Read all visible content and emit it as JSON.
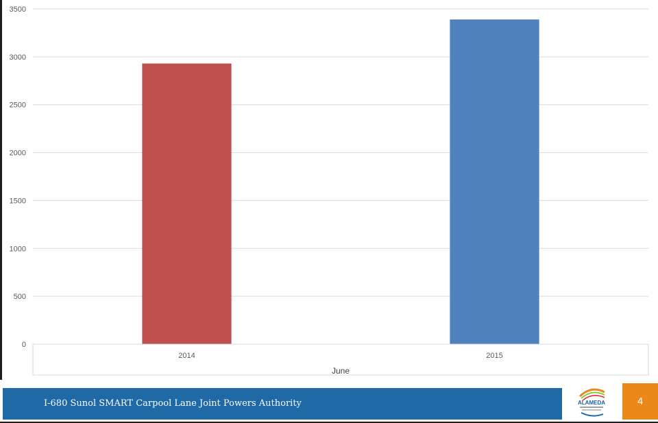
{
  "chart_data": {
    "type": "bar",
    "categories": [
      "2014",
      "2015"
    ],
    "values": [
      2930,
      3390
    ],
    "colors": [
      "#c0504d",
      "#4f81bd"
    ],
    "xlabel": "June",
    "ylabel": "",
    "ylim": [
      0,
      3500
    ],
    "yticks": [
      "0",
      "500",
      "1000",
      "1500",
      "2000",
      "2500",
      "3000",
      "3500"
    ],
    "grid": true
  },
  "footer": {
    "title": "I-680 Sunol SMART Carpool Lane Joint Powers Authority",
    "logo_text": "ALAMEDA",
    "logo_icon": "alameda-ctc-logo-icon",
    "page_number": "4",
    "band_color": "#1e69a6",
    "page_box_color": "#e8891a"
  }
}
